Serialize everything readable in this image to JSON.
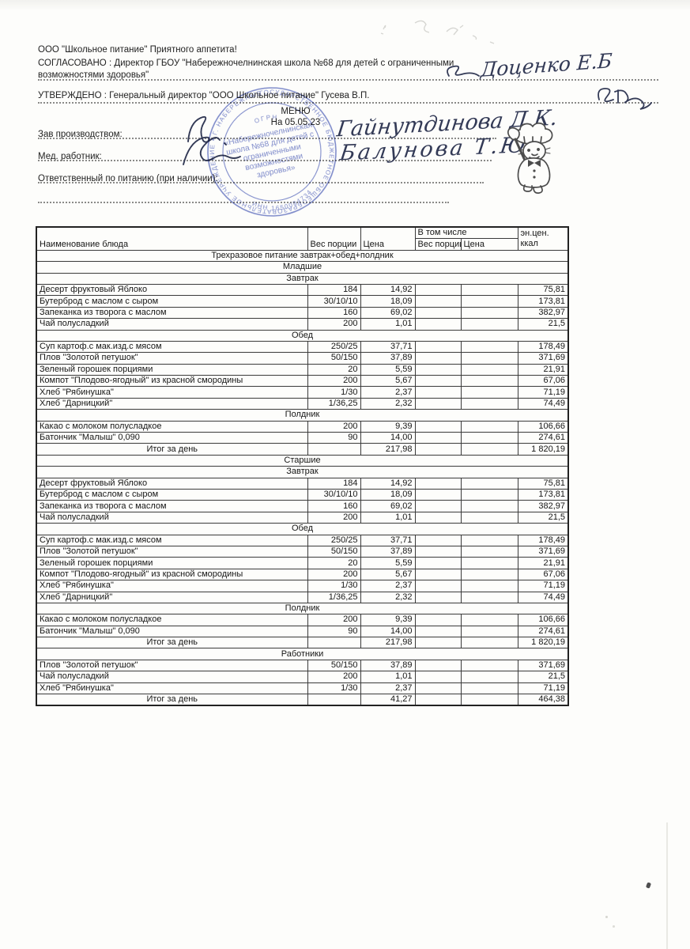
{
  "colors": {
    "ink": "#222222",
    "stamp_blue": "#5b6bc0",
    "paper": "#fdfdfb"
  },
  "header": {
    "company_line": "ООО \"Школьное питание\" Приятного аппетита!",
    "agreed_line": "СОГЛАСОВАНО : Директор ГБОУ \"Набережночелнинская школа №68 для детей с ограниченными возможностями здоровья\"",
    "approved_line": "УТВЕРЖДЕНО : Генеральный директор \"ООО Школьное питание\" Гусева В.П.",
    "menu_title": "МЕНЮ",
    "menu_date": "На 05.05.23",
    "fields": [
      {
        "label": "Зав производством:",
        "value": "Гайнутдинова Д.К."
      },
      {
        "label": "Мед. работник:",
        "value": "Балунова Т.Ю."
      },
      {
        "label": "Ответственный по питанию (при наличии):",
        "value": ""
      }
    ]
  },
  "signatures": {
    "director": "Доценко Е.Б",
    "production_manager": "Гайнутдинова Д.К.",
    "med_worker": "Балунова Т.Ю."
  },
  "stamp": {
    "ring_text": "ГОСУДАРСТВЕННОЕ БЮДЖЕТНОЕ ОБЩЕОБРАЗОВАТЕЛЬНОЕ УЧРЕЖДЕНИЕ • Г. НАБЕРЕЖНЫЕ ЧЕЛНЫ •",
    "inner_top": "ОГРН",
    "ring_bottom": "ИНН 1650084734",
    "center_lines": [
      "«Набережночелнинская",
      "школа №68 для детей с",
      "ограниченными",
      "возможностями",
      "здоровья»"
    ]
  },
  "table": {
    "columns": {
      "name": "Наименование блюда",
      "weight": "Вес порции",
      "price": "Цена",
      "including": "В том числе",
      "sub_weight": "Вес порции",
      "sub_price": "Цена",
      "energy_line1": "эн.цен.",
      "energy_line2": "ккал"
    },
    "rows": [
      {
        "type": "section",
        "label": "Трехразовое питание завтрак+обед+полдник"
      },
      {
        "type": "section",
        "label": "Младшие"
      },
      {
        "type": "section",
        "label": "Завтрак"
      },
      {
        "type": "item",
        "name": "Десерт фруктовый Яблоко",
        "weight": "184",
        "price": "14,92",
        "kcal": "75,81"
      },
      {
        "type": "item",
        "name": "Бутерброд с маслом с сыром",
        "weight": "30/10/10",
        "price": "18,09",
        "kcal": "173,81"
      },
      {
        "type": "item",
        "name": "Запеканка из творога с маслом",
        "weight": "160",
        "price": "69,02",
        "kcal": "382,97"
      },
      {
        "type": "item",
        "name": "Чай полусладкий",
        "weight": "200",
        "price": "1,01",
        "kcal": "21,5"
      },
      {
        "type": "section",
        "label": "Обед"
      },
      {
        "type": "item",
        "name": "Суп картоф.с мак.изд.с мясом",
        "weight": "250/25",
        "price": "37,71",
        "kcal": "178,49"
      },
      {
        "type": "item",
        "name": "Плов \"Золотой петушок\"",
        "weight": "50/150",
        "price": "37,89",
        "kcal": "371,69"
      },
      {
        "type": "item",
        "name": "Зеленый горошек порциями",
        "weight": "20",
        "price": "5,59",
        "kcal": "21,91"
      },
      {
        "type": "item",
        "name": "Компот \"Плодово-ягодный\" из красной смородины",
        "weight": "200",
        "price": "5,67",
        "kcal": "67,06"
      },
      {
        "type": "item",
        "name": "Хлеб \"Рябинушка\"",
        "weight": "1/30",
        "price": "2,37",
        "kcal": "71,19"
      },
      {
        "type": "item",
        "name": "Хлеб \"Дарницкий\"",
        "weight": "1/36,25",
        "price": "2,32",
        "kcal": "74,49"
      },
      {
        "type": "section",
        "label": "Полдник"
      },
      {
        "type": "item",
        "name": "Какао с молоком полусладкое",
        "weight": "200",
        "price": "9,39",
        "kcal": "106,66"
      },
      {
        "type": "item",
        "name": "Батончик \"Малыш\" 0,090",
        "weight": "90",
        "price": "14,00",
        "kcal": "274,61"
      },
      {
        "type": "total",
        "label": "Итог за день",
        "price": "217,98",
        "kcal": "1 820,19"
      },
      {
        "type": "section",
        "label": "Старшие"
      },
      {
        "type": "section",
        "label": "Завтрак"
      },
      {
        "type": "item",
        "name": "Десерт фруктовый Яблоко",
        "weight": "184",
        "price": "14,92",
        "kcal": "75,81"
      },
      {
        "type": "item",
        "name": "Бутерброд с маслом с сыром",
        "weight": "30/10/10",
        "price": "18,09",
        "kcal": "173,81"
      },
      {
        "type": "item",
        "name": "Запеканка из творога с маслом",
        "weight": "160",
        "price": "69,02",
        "kcal": "382,97"
      },
      {
        "type": "item",
        "name": "Чай полусладкий",
        "weight": "200",
        "price": "1,01",
        "kcal": "21,5"
      },
      {
        "type": "section",
        "label": "Обед"
      },
      {
        "type": "item",
        "name": "Суп картоф.с мак.изд.с мясом",
        "weight": "250/25",
        "price": "37,71",
        "kcal": "178,49"
      },
      {
        "type": "item",
        "name": "Плов \"Золотой петушок\"",
        "weight": "50/150",
        "price": "37,89",
        "kcal": "371,69"
      },
      {
        "type": "item",
        "name": "Зеленый горошек порциями",
        "weight": "20",
        "price": "5,59",
        "kcal": "21,91"
      },
      {
        "type": "item",
        "name": "Компот \"Плодово-ягодный\" из красной смородины",
        "weight": "200",
        "price": "5,67",
        "kcal": "67,06"
      },
      {
        "type": "item",
        "name": "Хлеб \"Рябинушка\"",
        "weight": "1/30",
        "price": "2,37",
        "kcal": "71,19"
      },
      {
        "type": "item",
        "name": "Хлеб \"Дарницкий\"",
        "weight": "1/36,25",
        "price": "2,32",
        "kcal": "74,49"
      },
      {
        "type": "section",
        "label": "Полдник"
      },
      {
        "type": "item",
        "name": "Какао с молоком полусладкое",
        "weight": "200",
        "price": "9,39",
        "kcal": "106,66"
      },
      {
        "type": "item",
        "name": "Батончик \"Малыш\" 0,090",
        "weight": "90",
        "price": "14,00",
        "kcal": "274,61"
      },
      {
        "type": "total",
        "label": "Итог за день",
        "price": "217,98",
        "kcal": "1 820,19"
      },
      {
        "type": "section",
        "label": "Работники"
      },
      {
        "type": "item",
        "name": "Плов \"Золотой петушок\"",
        "weight": "50/150",
        "price": "37,89",
        "kcal": "371,69"
      },
      {
        "type": "item",
        "name": "Чай полусладкий",
        "weight": "200",
        "price": "1,01",
        "kcal": "21,5"
      },
      {
        "type": "item",
        "name": "Хлеб \"Рябинушка\"",
        "weight": "1/30",
        "price": "2,37",
        "kcal": "71,19"
      },
      {
        "type": "total",
        "label": "Итог за день",
        "price": "41,27",
        "kcal": "464,38"
      }
    ]
  }
}
